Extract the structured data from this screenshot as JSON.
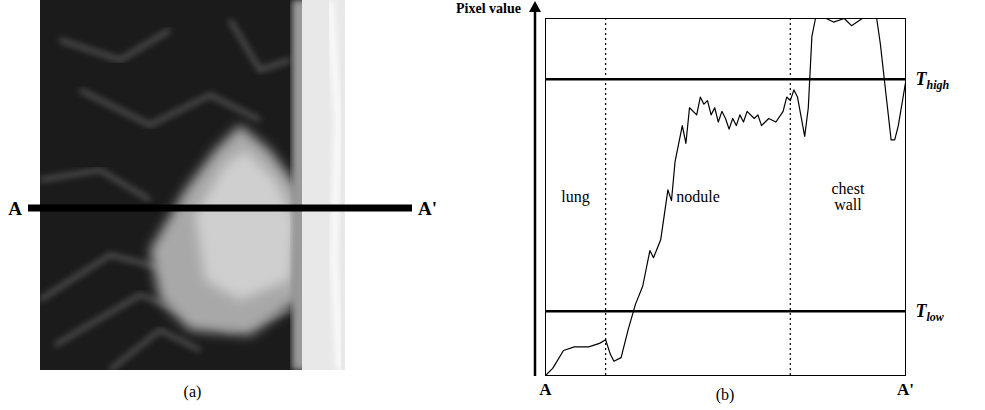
{
  "panels": [
    {
      "label": "(a)",
      "line_start": "A",
      "line_end": "A'"
    }
  ],
  "chart_data": {
    "type": "line",
    "caption": "(b)",
    "y_label": "Pixel value",
    "x_start_label": "A",
    "x_end_label": "A'",
    "x": [
      0,
      2,
      5,
      8,
      12,
      15,
      16.7,
      18,
      19,
      21,
      23,
      25,
      27,
      29,
      30,
      32,
      33,
      34,
      35,
      36,
      38,
      39,
      40,
      42,
      43,
      44,
      45,
      46,
      47,
      48,
      49,
      50,
      51,
      52,
      53,
      54,
      55,
      56,
      58,
      59,
      60,
      62,
      64,
      66,
      67,
      68,
      69,
      70,
      72,
      73,
      74,
      75,
      78,
      80,
      83,
      85,
      88,
      92,
      93,
      95,
      96,
      97,
      98,
      100
    ],
    "values": [
      0,
      2,
      7,
      8,
      8,
      9,
      10,
      6,
      4,
      5,
      13,
      20,
      25,
      35,
      33,
      38,
      45,
      52,
      49,
      60,
      70,
      65,
      75,
      73,
      78,
      76,
      77,
      73,
      75,
      71,
      74,
      72,
      69,
      72,
      70,
      73,
      71,
      74,
      72,
      73,
      70,
      72,
      71,
      74,
      78,
      77,
      80,
      78,
      67,
      75,
      95,
      100,
      100,
      99,
      100,
      98,
      100,
      100,
      93,
      75,
      66,
      66,
      70,
      82
    ],
    "color": "#000000",
    "xlim": [
      0,
      100
    ],
    "ylim": [
      0,
      100
    ],
    "xticks": [],
    "yticks": [],
    "tick_labels": false,
    "thresholds": [
      {
        "label": "T",
        "subscript": "high",
        "value": 83
      },
      {
        "label": "T",
        "subscript": "low",
        "value": 18
      }
    ],
    "regions": {
      "boundaries": [
        16.7,
        68
      ],
      "labels": [
        "lung",
        "nodule",
        "chest wall"
      ]
    }
  }
}
